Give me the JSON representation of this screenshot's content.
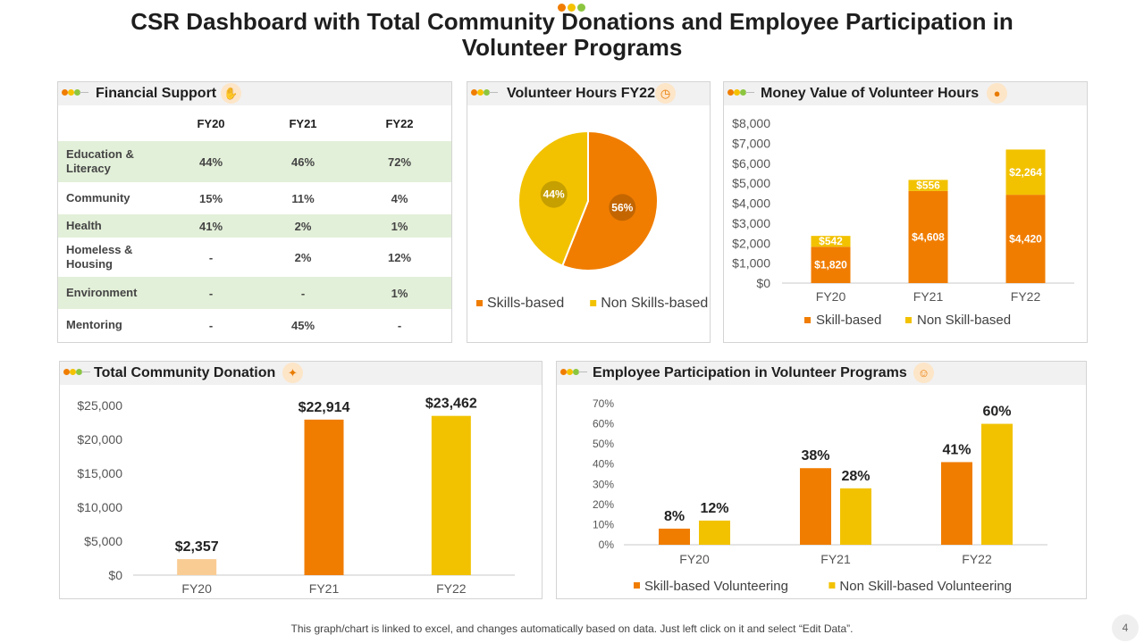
{
  "page": {
    "title": "CSR Dashboard with Total Community Donations and  Employee Participation in Volunteer Programs",
    "footer_note": "This graph/chart is linked to excel, and changes automatically based on data. Just left click on it and select “Edit Data”.",
    "page_number": "4",
    "dot_colors": [
      "#f07d00",
      "#f5c200",
      "#8cc63f"
    ]
  },
  "colors": {
    "orange": "#f07d00",
    "yellow": "#f2c200",
    "light_orange": "#f9cc94",
    "row_green": "#e3f0d9",
    "header_gray": "#f1f1f1"
  },
  "financial_support": {
    "title": "Financial Support",
    "icon": "hand-coin-icon",
    "columns": [
      "FY20",
      "FY21",
      "FY22"
    ],
    "rows": [
      {
        "category": "Education & Literacy",
        "values": [
          "44%",
          "46%",
          "72%"
        ],
        "shaded": true
      },
      {
        "category": "Community",
        "values": [
          "15%",
          "11%",
          "4%"
        ],
        "shaded": false
      },
      {
        "category": "Health",
        "values": [
          "41%",
          "2%",
          "1%"
        ],
        "shaded": true
      },
      {
        "category": "Homeless & Housing",
        "values": [
          "-",
          "2%",
          "12%"
        ],
        "shaded": false
      },
      {
        "category": "Environment",
        "values": [
          "-",
          "-",
          "1%"
        ],
        "shaded": true
      },
      {
        "category": "Mentoring",
        "values": [
          "-",
          "45%",
          "-"
        ],
        "shaded": false
      }
    ]
  },
  "volunteer_hours": {
    "title": "Volunteer Hours FY22",
    "icon": "clock-icon"
  },
  "money_value": {
    "title": "Money Value of Volunteer Hours",
    "icon": "coin-stack-icon"
  },
  "total_donation": {
    "title": "Total Community Donation",
    "icon": "handshake-icon"
  },
  "employee_participation": {
    "title": "Employee Participation in Volunteer Programs",
    "icon": "people-icon"
  },
  "chart_data": [
    {
      "id": "volunteer_hours_fy22",
      "type": "pie",
      "title": "Volunteer Hours FY22",
      "labels": [
        "Skills-based",
        "Non Skills-based"
      ],
      "values": [
        56,
        44
      ],
      "data_labels": [
        "56%",
        "44%"
      ],
      "colors": [
        "#f07d00",
        "#f2c200"
      ],
      "legend": "bottom"
    },
    {
      "id": "money_value_volunteer_hours",
      "type": "bar",
      "stacked": true,
      "title": "Money Value of Volunteer Hours",
      "categories": [
        "FY20",
        "FY21",
        "FY22"
      ],
      "series": [
        {
          "name": "Skill-based",
          "values": [
            1820,
            4608,
            4420
          ],
          "labels": [
            "$1,820",
            "$4,608",
            "$4,420"
          ],
          "color": "#f07d00"
        },
        {
          "name": "Non Skill-based",
          "values": [
            542,
            556,
            2264
          ],
          "labels": [
            "$542",
            "$556",
            "$2,264"
          ],
          "color": "#f2c200"
        }
      ],
      "yticks": [
        "$0",
        "$1,000",
        "$2,000",
        "$3,000",
        "$4,000",
        "$5,000",
        "$6,000",
        "$7,000",
        "$8,000"
      ],
      "ylim": [
        0,
        8000
      ],
      "legend": "bottom",
      "grid": false
    },
    {
      "id": "total_community_donation",
      "type": "bar",
      "title": "Total Community Donation",
      "categories": [
        "FY20",
        "FY21",
        "FY22"
      ],
      "values": [
        2357,
        22914,
        23462
      ],
      "labels": [
        "$2,357",
        "$22,914",
        "$23,462"
      ],
      "colors": [
        "#f9cc94",
        "#f07d00",
        "#f2c200"
      ],
      "yticks": [
        "$0",
        "$5,000",
        "$10,000",
        "$15,000",
        "$20,000",
        "$25,000"
      ],
      "ylim": [
        0,
        25000
      ],
      "grid": false
    },
    {
      "id": "employee_participation",
      "type": "bar",
      "title": "Employee Participation in Volunteer Programs",
      "categories": [
        "FY20",
        "FY21",
        "FY22"
      ],
      "series": [
        {
          "name": "Skill-based Volunteering",
          "values": [
            8,
            38,
            41
          ],
          "labels": [
            "8%",
            "38%",
            "41%"
          ],
          "color": "#f07d00"
        },
        {
          "name": "Non Skill-based Volunteering",
          "values": [
            12,
            28,
            60
          ],
          "labels": [
            "12%",
            "28%",
            "60%"
          ],
          "color": "#f2c200"
        }
      ],
      "yticks": [
        "0%",
        "10%",
        "20%",
        "30%",
        "40%",
        "50%",
        "60%",
        "70%"
      ],
      "ylim": [
        0,
        70
      ],
      "legend": "bottom",
      "grid": false
    }
  ]
}
